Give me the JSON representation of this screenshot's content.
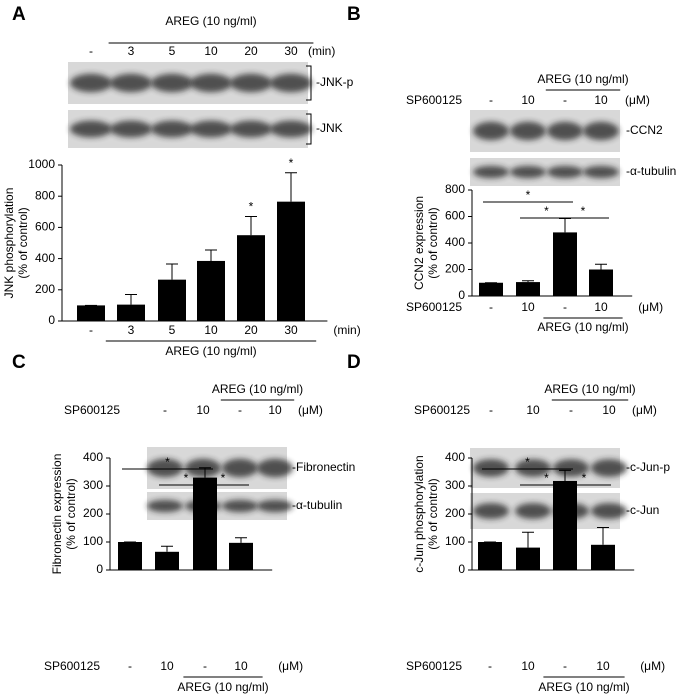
{
  "chart_data": [
    {
      "type": "bar",
      "panel": "A",
      "treatment": "AREG (10 ng/ml)",
      "treatment_categories": [
        1,
        2,
        3,
        4,
        5
      ],
      "unit": "(min)",
      "blot_labels": [
        "-JNK-p",
        "-JNK"
      ],
      "ylabel": [
        "JNK phosphorylation",
        "(% of control)"
      ],
      "categories": [
        "-",
        "3",
        "5",
        "10",
        "20",
        "30"
      ],
      "values": [
        100,
        105,
        265,
        385,
        550,
        765
      ],
      "errors": [
        0,
        65,
        100,
        70,
        120,
        185
      ],
      "color": "#000000",
      "ylim": [
        0,
        1000
      ],
      "yticks": [
        0,
        200,
        400,
        600,
        800,
        1000
      ],
      "annotations": [
        {
          "category": 4,
          "text": "*"
        },
        {
          "category": 5,
          "text": "*"
        }
      ]
    },
    {
      "type": "bar",
      "panel": "B",
      "treatment": "AREG (10 ng/ml)",
      "treatment_categories": [
        2,
        3
      ],
      "row_label": "SP600125",
      "unit": "(μM)",
      "blot_labels": [
        "-CCN2",
        "-α-tubulin"
      ],
      "ylabel": [
        "CCN2 expression",
        "(% of control)"
      ],
      "categories": [
        "-",
        "10",
        "-",
        "10"
      ],
      "values": [
        100,
        105,
        480,
        200
      ],
      "errors": [
        0,
        10,
        105,
        40
      ],
      "color": "#000000",
      "ylim": [
        0,
        800
      ],
      "yticks": [
        0,
        200,
        400,
        600,
        800
      ],
      "significance": [
        {
          "between": [
            0,
            2
          ],
          "text": "*"
        },
        {
          "between": [
            1,
            2
          ],
          "text": "*"
        },
        {
          "between": [
            2,
            3
          ],
          "text": "*"
        }
      ]
    },
    {
      "type": "bar",
      "panel": "C",
      "treatment": "AREG (10 ng/ml)",
      "treatment_categories": [
        2,
        3
      ],
      "row_label": "SP600125",
      "unit": "(μM)",
      "blot_labels": [
        "-Fibronectin",
        "-α-tubulin"
      ],
      "ylabel": [
        "Fibronectin expression",
        "(% of control)"
      ],
      "categories": [
        "-",
        "10",
        "-",
        "10"
      ],
      "values": [
        100,
        65,
        330,
        97
      ],
      "errors": [
        0,
        20,
        35,
        18
      ],
      "color": "#000000",
      "ylim": [
        0,
        400
      ],
      "yticks": [
        0,
        100,
        200,
        300,
        400
      ],
      "significance": [
        {
          "between": [
            0,
            2
          ],
          "text": "*"
        },
        {
          "between": [
            1,
            2
          ],
          "text": "*"
        },
        {
          "between": [
            2,
            3
          ],
          "text": "*"
        }
      ]
    },
    {
      "type": "bar",
      "panel": "D",
      "treatment": "AREG (10 ng/ml)",
      "treatment_categories": [
        2,
        3
      ],
      "row_label": "SP600125",
      "unit": "(μM)",
      "blot_labels": [
        "-c-Jun-p",
        "-c-Jun"
      ],
      "ylabel": [
        "c-Jun phosphorylation",
        "(% of control)"
      ],
      "categories": [
        "-",
        "10",
        "-",
        "10"
      ],
      "values": [
        100,
        80,
        318,
        90
      ],
      "errors": [
        0,
        55,
        38,
        62
      ],
      "color": "#000000",
      "ylim": [
        0,
        400
      ],
      "yticks": [
        0,
        100,
        200,
        300,
        400
      ],
      "significance": [
        {
          "between": [
            0,
            2
          ],
          "text": "*"
        },
        {
          "between": [
            1,
            2
          ],
          "text": "*"
        },
        {
          "between": [
            2,
            3
          ],
          "text": "*"
        }
      ]
    }
  ]
}
